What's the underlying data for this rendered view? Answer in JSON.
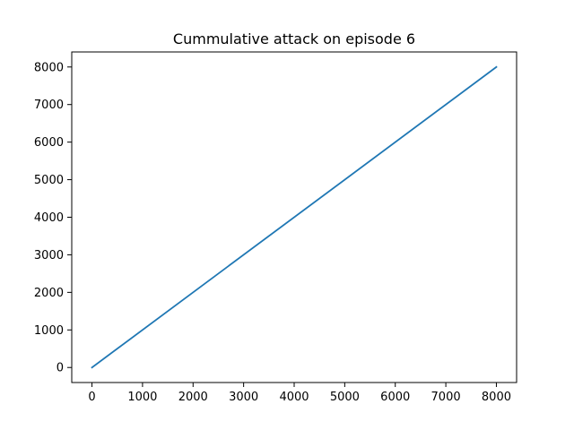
{
  "chart_data": {
    "type": "line",
    "title": "Cummulative attack on episode 6",
    "xlabel": "",
    "ylabel": "",
    "xlim": [
      -400,
      8400
    ],
    "ylim": [
      -400,
      8400
    ],
    "x_ticks": [
      0,
      1000,
      2000,
      3000,
      4000,
      5000,
      6000,
      7000,
      8000
    ],
    "y_ticks": [
      0,
      1000,
      2000,
      3000,
      4000,
      5000,
      6000,
      7000,
      8000
    ],
    "grid": false,
    "legend": "none",
    "series": [
      {
        "color": "#1f77b4",
        "x": [
          0,
          8000
        ],
        "y": [
          0,
          8000
        ]
      }
    ]
  }
}
